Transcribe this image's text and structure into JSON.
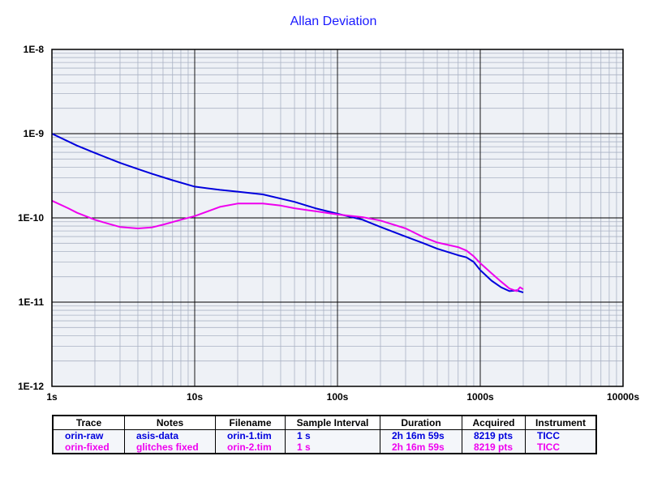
{
  "chart_data": {
    "type": "line",
    "title": "Allan Deviation",
    "xscale": "log",
    "yscale": "log",
    "xlim": [
      1,
      10000
    ],
    "ylim": [
      1e-12,
      1e-08
    ],
    "grid": true,
    "xticks": [
      "1s",
      "10s",
      "100s",
      "1000s",
      "10000s"
    ],
    "yticks": [
      "1E-8",
      "1E-9",
      "1E-10",
      "1E-11",
      "1E-12"
    ],
    "series": [
      {
        "name": "orin-raw",
        "color": "#0000dd",
        "x": [
          1,
          1.5,
          2,
          3,
          4,
          5,
          7,
          10,
          15,
          20,
          30,
          50,
          70,
          100,
          150,
          200,
          300,
          400,
          500,
          700,
          800,
          900,
          1000,
          1200,
          1400,
          1600,
          1800,
          2000
        ],
        "y": [
          1e-09,
          7.2e-10,
          5.9e-10,
          4.5e-10,
          3.8e-10,
          3.35e-10,
          2.8e-10,
          2.35e-10,
          2.15e-10,
          2.05e-10,
          1.9e-10,
          1.55e-10,
          1.3e-10,
          1.12e-10,
          9.5e-11,
          7.8e-11,
          6e-11,
          5e-11,
          4.3e-11,
          3.6e-11,
          3.4e-11,
          3e-11,
          2.4e-11,
          1.8e-11,
          1.5e-11,
          1.35e-11,
          1.38e-11,
          1.3e-11
        ]
      },
      {
        "name": "orin-fixed",
        "color": "#ee00ee",
        "x": [
          1,
          1.3,
          1.5,
          2,
          2.5,
          3,
          4,
          5,
          6,
          8,
          10,
          15,
          20,
          30,
          40,
          50,
          70,
          100,
          150,
          200,
          300,
          400,
          500,
          700,
          800,
          900,
          1000,
          1200,
          1400,
          1600,
          1800,
          1900,
          2000
        ],
        "y": [
          1.6e-10,
          1.3e-10,
          1.15e-10,
          9.5e-11,
          8.5e-11,
          7.8e-11,
          7.5e-11,
          7.7e-11,
          8.3e-11,
          9.5e-11,
          1.05e-10,
          1.35e-10,
          1.48e-10,
          1.48e-10,
          1.4e-10,
          1.3e-10,
          1.2e-10,
          1.1e-10,
          1.02e-10,
          9.3e-11,
          7.5e-11,
          5.9e-11,
          5.1e-11,
          4.5e-11,
          4.1e-11,
          3.5e-11,
          2.9e-11,
          2.2e-11,
          1.75e-11,
          1.45e-11,
          1.35e-11,
          1.5e-11,
          1.42e-11
        ]
      }
    ]
  },
  "legend": {
    "headers": [
      "Trace",
      "Notes",
      "Filename",
      "Sample Interval",
      "Duration",
      "Acquired",
      "Instrument"
    ],
    "rows": [
      {
        "color": "#0000dd",
        "cells": [
          "orin-raw",
          "asis-data",
          "orin-1.tim",
          "1 s",
          "2h 16m 59s",
          "8219 pts",
          "TICC"
        ]
      },
      {
        "color": "#ee00ee",
        "cells": [
          "orin-fixed",
          "glitches fixed",
          "orin-2.tim",
          "1 s",
          "2h 16m 59s",
          "8219 pts",
          "TICC"
        ]
      }
    ]
  }
}
